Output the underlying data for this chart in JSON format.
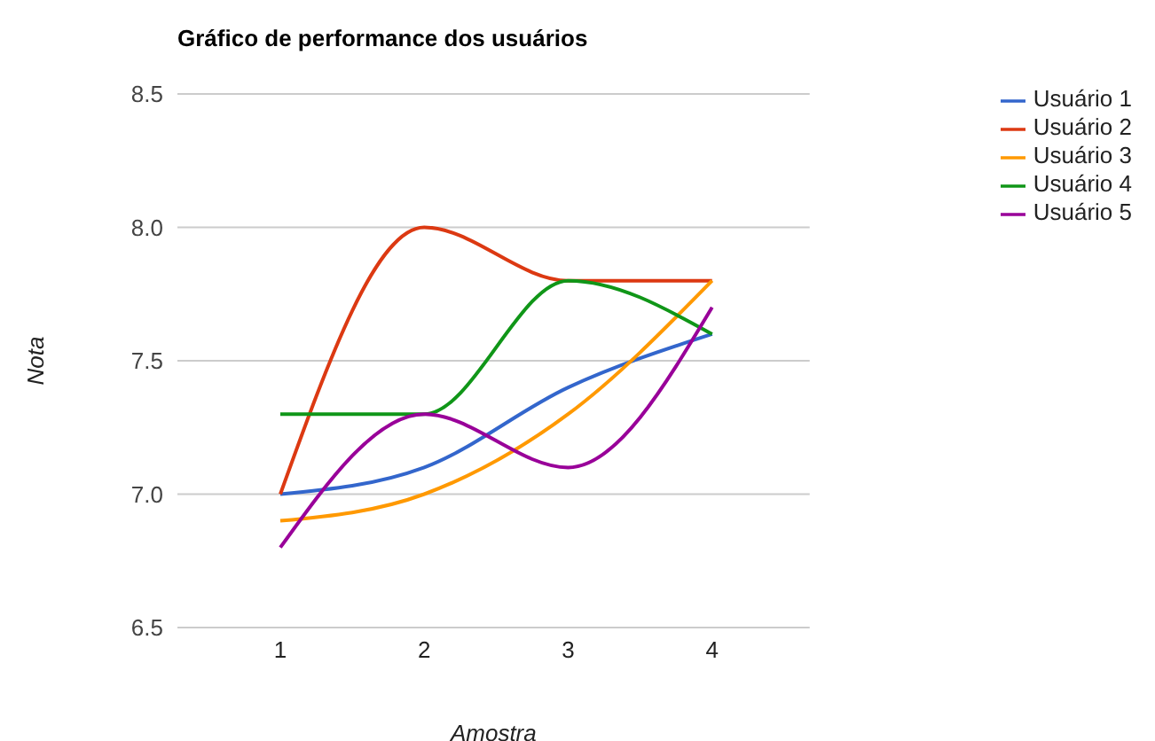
{
  "chart_data": {
    "type": "line",
    "title": "Gráfico de performance dos usuários",
    "xlabel": "Amostra",
    "ylabel": "Nota",
    "categories": [
      "1",
      "2",
      "3",
      "4"
    ],
    "series": [
      {
        "name": "Usuário 1",
        "color": "#3366cc",
        "values": [
          7.0,
          7.1,
          7.4,
          7.6
        ]
      },
      {
        "name": "Usuário 2",
        "color": "#dc3912",
        "values": [
          7.0,
          8.0,
          7.8,
          7.8
        ]
      },
      {
        "name": "Usuário 3",
        "color": "#ff9900",
        "values": [
          6.9,
          7.0,
          7.3,
          7.8
        ]
      },
      {
        "name": "Usuário 4",
        "color": "#109618",
        "values": [
          7.3,
          7.3,
          7.8,
          7.6
        ]
      },
      {
        "name": "Usuário 5",
        "color": "#990099",
        "values": [
          6.8,
          7.3,
          7.1,
          7.7
        ]
      }
    ],
    "ylim": [
      6.5,
      8.5
    ],
    "yticks": [
      6.5,
      {
        "value": 7,
        "label": "7.0"
      },
      7.5,
      {
        "value": 8,
        "label": "8.0"
      },
      8.5
    ],
    "grid": "y",
    "legend": "top right",
    "marker": "none",
    "line_style": "solid"
  }
}
